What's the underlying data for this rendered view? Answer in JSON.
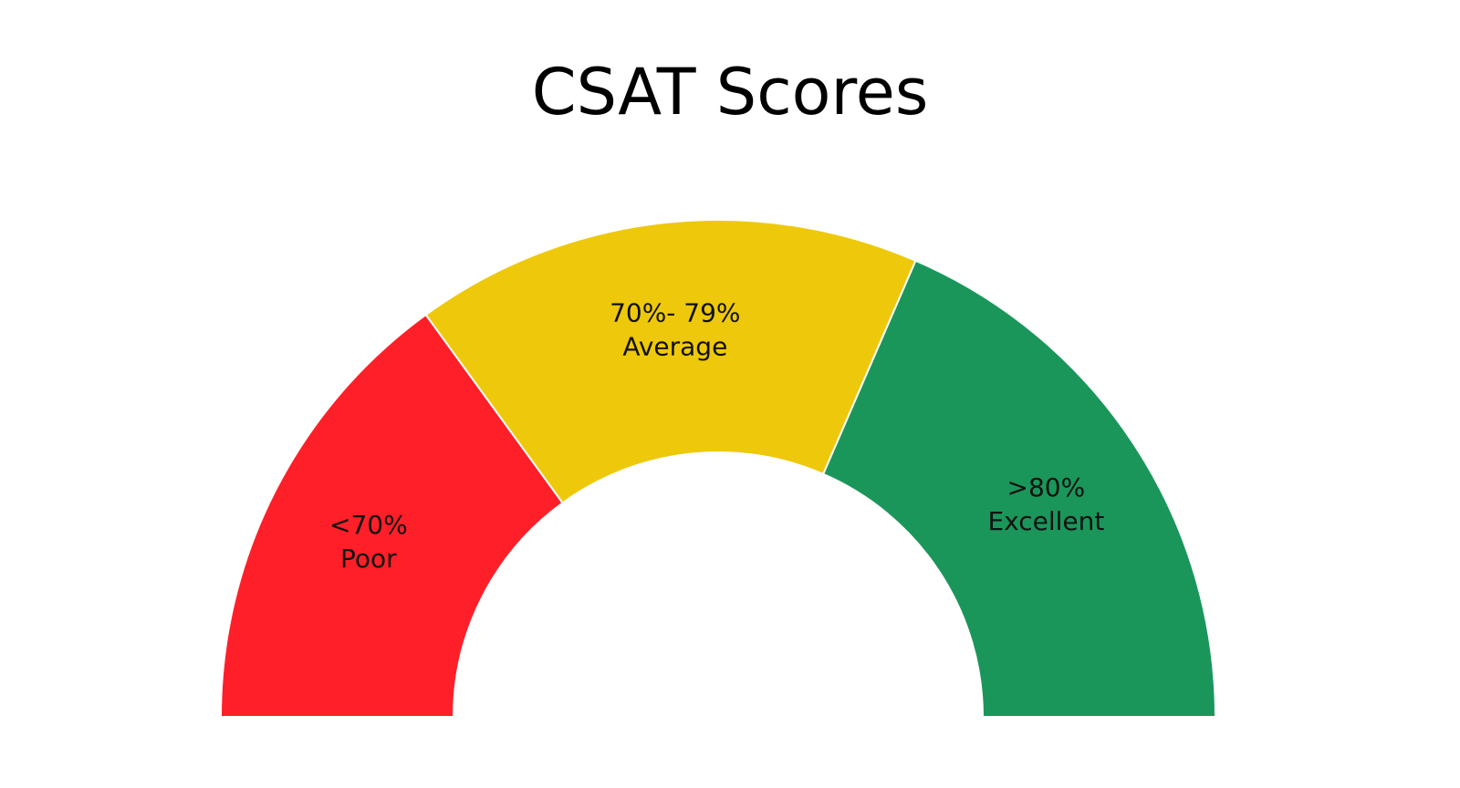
{
  "chart_data": {
    "type": "pie",
    "style": "semicircle-gauge",
    "title": "CSAT Scores",
    "segments": [
      {
        "name": "<70%",
        "label": "Poor",
        "value": 30,
        "color": "#FF1F28"
      },
      {
        "name": "70%- 79%",
        "label": "Average",
        "value": 33,
        "color": "#EEC80B"
      },
      {
        "name": ">80%",
        "label": "Excellent",
        "value": 37,
        "color": "#1B965A"
      }
    ]
  }
}
